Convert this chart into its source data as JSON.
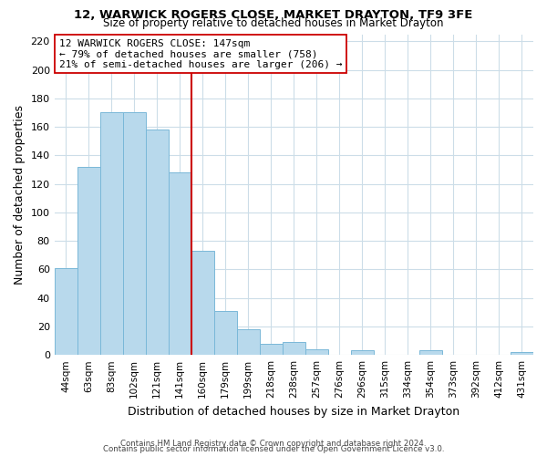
{
  "title": "12, WARWICK ROGERS CLOSE, MARKET DRAYTON, TF9 3FE",
  "subtitle": "Size of property relative to detached houses in Market Drayton",
  "xlabel": "Distribution of detached houses by size in Market Drayton",
  "ylabel": "Number of detached properties",
  "bar_labels": [
    "44sqm",
    "63sqm",
    "83sqm",
    "102sqm",
    "121sqm",
    "141sqm",
    "160sqm",
    "179sqm",
    "199sqm",
    "218sqm",
    "238sqm",
    "257sqm",
    "276sqm",
    "296sqm",
    "315sqm",
    "334sqm",
    "354sqm",
    "373sqm",
    "392sqm",
    "412sqm",
    "431sqm"
  ],
  "bar_values": [
    61,
    132,
    170,
    170,
    158,
    128,
    73,
    31,
    18,
    8,
    9,
    4,
    0,
    3,
    0,
    0,
    3,
    0,
    0,
    0,
    2
  ],
  "bar_color": "#b8d9ec",
  "bar_edge_color": "#7ab8d8",
  "vline_x": 5.5,
  "vline_color": "#cc0000",
  "annotation_title": "12 WARWICK ROGERS CLOSE: 147sqm",
  "annotation_line1": "← 79% of detached houses are smaller (758)",
  "annotation_line2": "21% of semi-detached houses are larger (206) →",
  "annotation_box_color": "#ffffff",
  "annotation_box_edge": "#cc0000",
  "ylim": [
    0,
    225
  ],
  "yticks": [
    0,
    20,
    40,
    60,
    80,
    100,
    120,
    140,
    160,
    180,
    200,
    220
  ],
  "footer1": "Contains HM Land Registry data © Crown copyright and database right 2024.",
  "footer2": "Contains public sector information licensed under the Open Government Licence v3.0.",
  "bg_color": "#ffffff",
  "grid_color": "#ccdde8"
}
